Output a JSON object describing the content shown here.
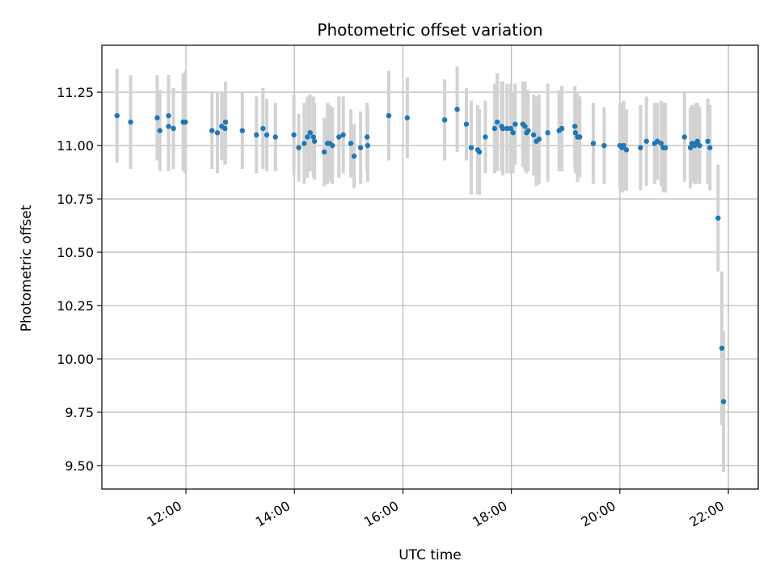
{
  "chart_data": {
    "type": "scatter",
    "title": "Photometric offset variation",
    "xlabel": "UTC time",
    "ylabel": "Photometric offset",
    "x_unit": "hour",
    "xlim": [
      10.45,
      22.55
    ],
    "ylim": [
      9.39,
      11.47
    ],
    "x_ticks": [
      {
        "value": 12,
        "label": "12:00"
      },
      {
        "value": 14,
        "label": "14:00"
      },
      {
        "value": 16,
        "label": "16:00"
      },
      {
        "value": 18,
        "label": "18:00"
      },
      {
        "value": 20,
        "label": "20:00"
      },
      {
        "value": 22,
        "label": "22:00"
      }
    ],
    "y_ticks": [
      {
        "value": 9.5,
        "label": "9.50"
      },
      {
        "value": 9.75,
        "label": "9.75"
      },
      {
        "value": 10.0,
        "label": "10.00"
      },
      {
        "value": 10.25,
        "label": "10.25"
      },
      {
        "value": 10.5,
        "label": "10.50"
      },
      {
        "value": 10.75,
        "label": "10.75"
      },
      {
        "value": 11.0,
        "label": "11.00"
      },
      {
        "value": 11.25,
        "label": "11.25"
      }
    ],
    "grid": true,
    "colors": {
      "point": "#1f77b4",
      "errorbar": "#d3d3d3",
      "grid": "#b0b0b0"
    },
    "series": [
      {
        "points": [
          [
            10.73,
            11.14,
            0.22
          ],
          [
            10.98,
            11.11,
            0.22
          ],
          [
            11.47,
            11.13,
            0.2
          ],
          [
            11.52,
            11.07,
            0.19
          ],
          [
            11.68,
            11.14,
            0.19
          ],
          [
            11.68,
            11.09,
            0.21
          ],
          [
            11.77,
            11.08,
            0.19
          ],
          [
            11.95,
            11.11,
            0.23
          ],
          [
            11.99,
            11.11,
            0.24
          ],
          [
            12.48,
            11.07,
            0.18
          ],
          [
            12.58,
            11.06,
            0.19
          ],
          [
            12.66,
            11.09,
            0.16
          ],
          [
            12.72,
            11.08,
            0.17
          ],
          [
            12.73,
            11.11,
            0.19
          ],
          [
            13.04,
            11.07,
            0.18
          ],
          [
            13.3,
            11.05,
            0.18
          ],
          [
            13.42,
            11.08,
            0.19
          ],
          [
            13.49,
            11.05,
            0.17
          ],
          [
            13.65,
            11.04,
            0.16
          ],
          [
            13.99,
            11.05,
            0.19
          ],
          [
            14.08,
            10.99,
            0.16
          ],
          [
            14.18,
            11.01,
            0.19
          ],
          [
            14.24,
            11.04,
            0.19
          ],
          [
            14.29,
            11.06,
            0.18
          ],
          [
            14.35,
            11.04,
            0.19
          ],
          [
            14.37,
            11.02,
            0.18
          ],
          [
            14.55,
            10.97,
            0.16
          ],
          [
            14.61,
            11.01,
            0.19
          ],
          [
            14.65,
            11.01,
            0.18
          ],
          [
            14.7,
            11.0,
            0.18
          ],
          [
            14.82,
            11.04,
            0.19
          ],
          [
            14.9,
            11.05,
            0.18
          ],
          [
            15.04,
            11.01,
            0.16
          ],
          [
            15.1,
            10.95,
            0.15
          ],
          [
            15.22,
            10.99,
            0.17
          ],
          [
            15.34,
            11.04,
            0.16
          ],
          [
            15.35,
            11.0,
            0.17
          ],
          [
            15.74,
            11.14,
            0.21
          ],
          [
            16.08,
            11.13,
            0.19
          ],
          [
            16.77,
            11.12,
            0.19
          ],
          [
            17.0,
            11.17,
            0.2
          ],
          [
            17.17,
            11.1,
            0.17
          ],
          [
            17.26,
            10.99,
            0.22
          ],
          [
            17.38,
            10.98,
            0.21
          ],
          [
            17.41,
            10.97,
            0.2
          ],
          [
            17.52,
            11.04,
            0.17
          ],
          [
            17.69,
            11.08,
            0.21
          ],
          [
            17.74,
            11.11,
            0.23
          ],
          [
            17.82,
            11.09,
            0.21
          ],
          [
            17.84,
            11.08,
            0.22
          ],
          [
            17.92,
            11.08,
            0.21
          ],
          [
            17.99,
            11.08,
            0.21
          ],
          [
            18.03,
            11.06,
            0.19
          ],
          [
            18.07,
            11.1,
            0.19
          ],
          [
            18.21,
            11.1,
            0.2
          ],
          [
            18.25,
            11.09,
            0.21
          ],
          [
            18.28,
            11.06,
            0.19
          ],
          [
            18.31,
            11.07,
            0.19
          ],
          [
            18.41,
            11.05,
            0.19
          ],
          [
            18.46,
            11.02,
            0.21
          ],
          [
            18.51,
            11.03,
            0.21
          ],
          [
            18.67,
            11.06,
            0.23
          ],
          [
            18.88,
            11.07,
            0.19
          ],
          [
            18.93,
            11.08,
            0.2
          ],
          [
            19.17,
            11.09,
            0.19
          ],
          [
            19.18,
            11.06,
            0.19
          ],
          [
            19.22,
            11.04,
            0.21
          ],
          [
            19.26,
            11.04,
            0.19
          ],
          [
            19.51,
            11.01,
            0.19
          ],
          [
            19.71,
            11.0,
            0.18
          ],
          [
            20.0,
            11.0,
            0.2
          ],
          [
            20.04,
            10.99,
            0.21
          ],
          [
            20.07,
            11.0,
            0.21
          ],
          [
            20.12,
            10.98,
            0.19
          ],
          [
            20.38,
            10.99,
            0.2
          ],
          [
            20.49,
            11.02,
            0.21
          ],
          [
            20.64,
            11.01,
            0.19
          ],
          [
            20.69,
            11.02,
            0.18
          ],
          [
            20.76,
            11.01,
            0.2
          ],
          [
            20.8,
            10.99,
            0.21
          ],
          [
            20.84,
            10.99,
            0.21
          ],
          [
            21.19,
            11.04,
            0.21
          ],
          [
            21.3,
            10.99,
            0.19
          ],
          [
            21.33,
            11.01,
            0.18
          ],
          [
            21.38,
            11.0,
            0.18
          ],
          [
            21.4,
            11.01,
            0.19
          ],
          [
            21.43,
            11.02,
            0.18
          ],
          [
            21.47,
            11.0,
            0.18
          ],
          [
            21.62,
            11.02,
            0.2
          ],
          [
            21.66,
            10.99,
            0.2
          ],
          [
            21.81,
            10.66,
            0.25
          ],
          [
            21.88,
            10.05,
            0.36
          ],
          [
            21.91,
            9.8,
            0.33
          ]
        ]
      }
    ]
  }
}
